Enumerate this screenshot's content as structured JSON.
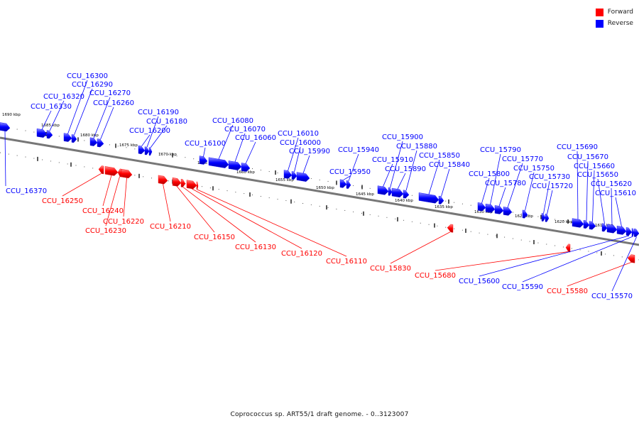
{
  "legend": {
    "forward": {
      "label": "Forward",
      "color": "#ff0000"
    },
    "reverse": {
      "label": "Reverse",
      "color": "#0000ff"
    }
  },
  "caption": "Coprococcus sp. ART55/1 draft genome. - 0..3123007",
  "scale_ticks": [
    "1690 kbp",
    "1685 kbp",
    "1680 kbp",
    "1675 kbp",
    "1670 kbp",
    "1665 kbp",
    "1660 kbp",
    "1655 kbp",
    "1650 kbp",
    "1645 kbp",
    "1640 kbp",
    "1635 kbp",
    "1630 kbp",
    "1625 kbp",
    "1620 kbp",
    "1615 kbp"
  ],
  "genes": [
    {
      "id": "CCU_16370",
      "strand": "reverse"
    },
    {
      "id": "CCU_16330",
      "strand": "reverse"
    },
    {
      "id": "CCU_16320",
      "strand": "reverse"
    },
    {
      "id": "CCU_16300",
      "strand": "reverse"
    },
    {
      "id": "CCU_16290",
      "strand": "reverse"
    },
    {
      "id": "CCU_16270",
      "strand": "reverse"
    },
    {
      "id": "CCU_16260",
      "strand": "reverse"
    },
    {
      "id": "CCU_16250",
      "strand": "forward"
    },
    {
      "id": "CCU_16240",
      "strand": "forward"
    },
    {
      "id": "CCU_16230",
      "strand": "forward"
    },
    {
      "id": "CCU_16220",
      "strand": "forward"
    },
    {
      "id": "CCU_16210",
      "strand": "forward"
    },
    {
      "id": "CCU_16200",
      "strand": "reverse"
    },
    {
      "id": "CCU_16190",
      "strand": "reverse"
    },
    {
      "id": "CCU_16180",
      "strand": "reverse"
    },
    {
      "id": "CCU_16150",
      "strand": "forward"
    },
    {
      "id": "CCU_16130",
      "strand": "forward"
    },
    {
      "id": "CCU_16120",
      "strand": "forward"
    },
    {
      "id": "CCU_16110",
      "strand": "forward"
    },
    {
      "id": "CCU_16100",
      "strand": "reverse"
    },
    {
      "id": "CCU_16080",
      "strand": "reverse"
    },
    {
      "id": "CCU_16070",
      "strand": "reverse"
    },
    {
      "id": "CCU_16060",
      "strand": "reverse"
    },
    {
      "id": "CCU_16010",
      "strand": "reverse"
    },
    {
      "id": "CCU_16000",
      "strand": "reverse"
    },
    {
      "id": "CCU_15990",
      "strand": "reverse"
    },
    {
      "id": "CCU_15950",
      "strand": "reverse"
    },
    {
      "id": "CCU_15940",
      "strand": "reverse"
    },
    {
      "id": "CCU_15910",
      "strand": "reverse"
    },
    {
      "id": "CCU_15900",
      "strand": "reverse"
    },
    {
      "id": "CCU_15890",
      "strand": "reverse"
    },
    {
      "id": "CCU_15880",
      "strand": "reverse"
    },
    {
      "id": "CCU_15850",
      "strand": "reverse"
    },
    {
      "id": "CCU_15840",
      "strand": "reverse"
    },
    {
      "id": "CCU_15830",
      "strand": "forward"
    },
    {
      "id": "CCU_15800",
      "strand": "reverse"
    },
    {
      "id": "CCU_15790",
      "strand": "reverse"
    },
    {
      "id": "CCU_15780",
      "strand": "reverse"
    },
    {
      "id": "CCU_15770",
      "strand": "reverse"
    },
    {
      "id": "CCU_15750",
      "strand": "reverse"
    },
    {
      "id": "CCU_15730",
      "strand": "reverse"
    },
    {
      "id": "CCU_15720",
      "strand": "reverse"
    },
    {
      "id": "CCU_15690",
      "strand": "reverse"
    },
    {
      "id": "CCU_15680",
      "strand": "forward"
    },
    {
      "id": "CCU_15670",
      "strand": "reverse"
    },
    {
      "id": "CCU_15660",
      "strand": "reverse"
    },
    {
      "id": "CCU_15650",
      "strand": "reverse"
    },
    {
      "id": "CCU_15620",
      "strand": "reverse"
    },
    {
      "id": "CCU_15610",
      "strand": "reverse"
    },
    {
      "id": "CCU_15600",
      "strand": "reverse"
    },
    {
      "id": "CCU_15590",
      "strand": "reverse"
    },
    {
      "id": "CCU_15580",
      "strand": "forward"
    },
    {
      "id": "CCU_15570",
      "strand": "reverse"
    }
  ]
}
